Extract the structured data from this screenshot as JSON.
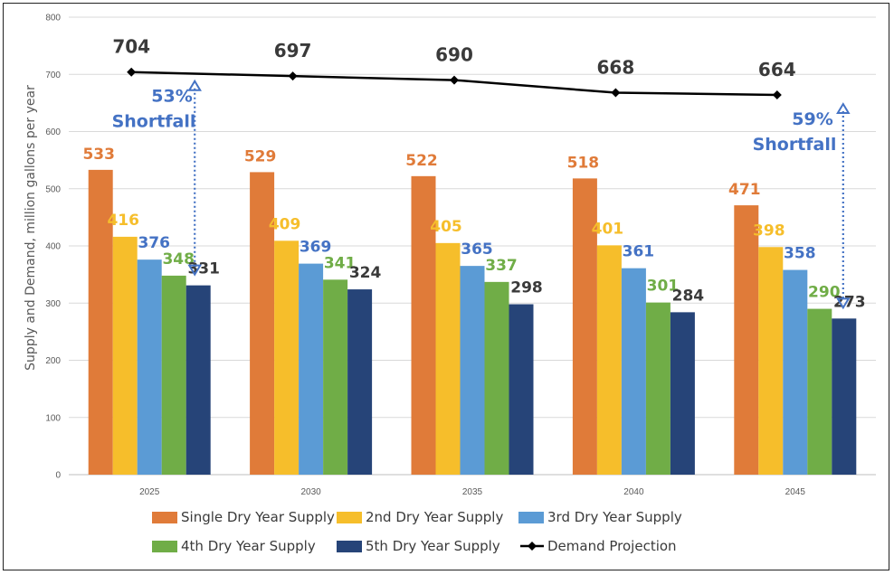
{
  "chart_data": {
    "type": "bar",
    "ylabel": "Supply and Demand, million gallons per year",
    "xlabel": "",
    "ylim": [
      0,
      800
    ],
    "yticks": [
      0,
      100,
      200,
      300,
      400,
      500,
      600,
      700,
      800
    ],
    "grid": true,
    "legend_position": "bottom",
    "categories": [
      "2025",
      "2030",
      "2035",
      "2040",
      "2045"
    ],
    "series": [
      {
        "name": "Single Dry Year Supply",
        "values": [
          533,
          529,
          522,
          518,
          471
        ],
        "color": "#E07B39",
        "label_color": "#E07B39"
      },
      {
        "name": "2nd Dry Year Supply",
        "values": [
          416,
          409,
          405,
          401,
          398
        ],
        "color": "#F6BE2B",
        "label_color": "#F6BE2B"
      },
      {
        "name": "3rd Dry Year Supply",
        "values": [
          376,
          369,
          365,
          361,
          358
        ],
        "color": "#5B9BD5",
        "label_color": "#4472C4"
      },
      {
        "name": "4th Dry Year Supply",
        "values": [
          348,
          341,
          337,
          301,
          290
        ],
        "color": "#70AD47",
        "label_color": "#70AD47"
      },
      {
        "name": "5th Dry Year Supply",
        "values": [
          331,
          324,
          298,
          284,
          273
        ],
        "color": "#264478",
        "label_color": "#3a3a3a"
      }
    ],
    "line_series": {
      "name": "Demand Projection",
      "values": [
        704,
        697,
        690,
        668,
        664
      ],
      "color": "#000000"
    },
    "annotations": [
      {
        "pct": "53%",
        "word": "Shortfall",
        "category": "2025",
        "from": 704,
        "to": 331,
        "color": "#4472C4"
      },
      {
        "pct": "59%",
        "word": "Shortfall",
        "category": "2045",
        "from": 664,
        "to": 273,
        "color": "#4472C4"
      }
    ]
  }
}
